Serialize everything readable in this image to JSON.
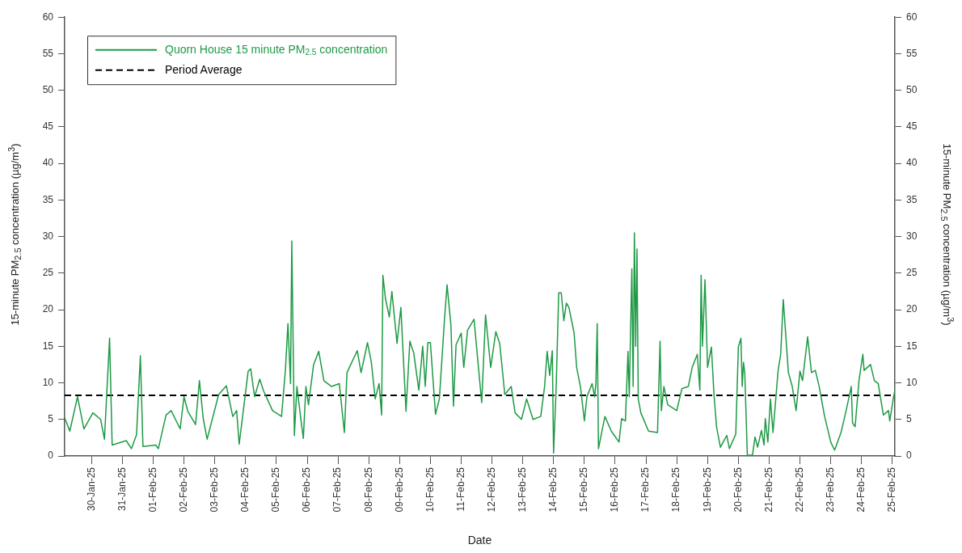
{
  "chart_data": {
    "type": "line",
    "xlabel": "Date",
    "ylabel": "15-minute PM$_{2.5}$ concentration (µg/m$^{3}$)",
    "y2label": "15-minute PM$_{2.5}$ concentration (µg/m$^{3}$)",
    "xlim": [
      "--01-29T03:00",
      "--02-25T02:00"
    ],
    "xticks": [
      {
        "value": "--01-30",
        "label": "30-Jan-25"
      },
      {
        "value": "--01-31",
        "label": "31-Jan-25"
      },
      {
        "value": "--02-01",
        "label": "01-Feb-25"
      },
      {
        "value": "--02-02",
        "label": "02-Feb-25"
      },
      {
        "value": "--02-03",
        "label": "03-Feb-25"
      },
      {
        "value": "--02-04",
        "label": "04-Feb-25"
      },
      {
        "value": "--02-05",
        "label": "05-Feb-25"
      },
      {
        "value": "--02-06",
        "label": "06-Feb-25"
      },
      {
        "value": "--02-07",
        "label": "07-Feb-25"
      },
      {
        "value": "--02-08",
        "label": "08-Feb-25"
      },
      {
        "value": "--02-09",
        "label": "09-Feb-25"
      },
      {
        "value": "--02-10",
        "label": "10-Feb-25"
      },
      {
        "value": "--02-11",
        "label": "11-Feb-25"
      },
      {
        "value": "--02-12",
        "label": "12-Feb-25"
      },
      {
        "value": "--02-13",
        "label": "13-Feb-25"
      },
      {
        "value": "--02-14",
        "label": "14-Feb-25"
      },
      {
        "value": "--02-15",
        "label": "15-Feb-25"
      },
      {
        "value": "--02-16",
        "label": "16-Feb-25"
      },
      {
        "value": "--02-17",
        "label": "17-Feb-25"
      },
      {
        "value": "--02-18",
        "label": "18-Feb-25"
      },
      {
        "value": "--02-19",
        "label": "19-Feb-25"
      },
      {
        "value": "--02-20",
        "label": "20-Feb-25"
      },
      {
        "value": "--02-21",
        "label": "21-Feb-25"
      },
      {
        "value": "--02-22",
        "label": "22-Feb-25"
      },
      {
        "value": "--02-23",
        "label": "23-Feb-25"
      },
      {
        "value": "--02-24",
        "label": "24-Feb-25"
      },
      {
        "value": "--02-25",
        "label": "25-Feb-25"
      }
    ],
    "ylim": [
      0,
      60
    ],
    "yticks": [
      0,
      5,
      10,
      15,
      20,
      25,
      30,
      35,
      40,
      45,
      50,
      55,
      60
    ],
    "y2lim": [
      0,
      60
    ],
    "y2ticks": [
      0,
      5,
      10,
      15,
      20,
      25,
      30,
      35,
      40,
      45,
      50,
      55,
      60
    ],
    "grid": false,
    "legend": "top left",
    "marker": "none",
    "line_style": "solid",
    "x": [
      "--01-29T03:00",
      "--01-29T07:00",
      "--01-29T13:00",
      "--01-29T18:00",
      "--01-30T01:00",
      "--01-30T07:00",
      "--01-30T10:00",
      "--01-30T14:00",
      "--01-30T16:00",
      "--01-31T03:00",
      "--01-31T07:00",
      "--01-31T11:00",
      "--01-31T14:00",
      "--01-31T16:00",
      "--02-01T02:00",
      "--02-01T04:00",
      "--02-01T10:00",
      "--02-01T14:00",
      "--02-01T21:00",
      "--02-02T00:00",
      "--02-02T03:00",
      "--02-02T09:00",
      "--02-02T12:00",
      "--02-02T15:00",
      "--02-02T18:00",
      "--02-03T03:00",
      "--02-03T09:00",
      "--02-03T14:00",
      "--02-03T17:00",
      "--02-03T19:00",
      "--02-04T02:00",
      "--02-04T04:00",
      "--02-04T07:00",
      "--02-04T11:00",
      "--02-04T14:00",
      "--02-04T21:00",
      "--02-05T04:00",
      "--02-05T07:00",
      "--02-05T09:00",
      "--02-05T11:00",
      "--02-05T12:00",
      "--02-05T14:00",
      "--02-05T16:00",
      "--02-05T19:00",
      "--02-05T21:00",
      "--02-05T23:00",
      "--02-06T01:00",
      "--02-06T05:00",
      "--02-06T09:00",
      "--02-06T13:00",
      "--02-06T19:00",
      "--02-07T01:00",
      "--02-07T05:00",
      "--02-07T07:00",
      "--02-07T15:00",
      "--02-07T18:00",
      "--02-07T23:00",
      "--02-08T02:00",
      "--02-08T05:00",
      "--02-08T08:00",
      "--02-08T10:00",
      "--02-08T11:00",
      "--02-08T13:00",
      "--02-08T16:00",
      "--02-08T18:00",
      "--02-08T22:00",
      "--02-09T01:00",
      "--02-09T05:00",
      "--02-09T08:00",
      "--02-09T11:00",
      "--02-09T15:00",
      "--02-09T18:00",
      "--02-09T20:00",
      "--02-09T22:00",
      "--02-10T00:00",
      "--02-10T04:00",
      "--02-10T07:00",
      "--02-10T11:00",
      "--02-10T13:00",
      "--02-10T16:00",
      "--02-10T18:00",
      "--02-10T20:00",
      "--02-11T00:00",
      "--02-11T02:00",
      "--02-11T05:00",
      "--02-11T10:00",
      "--02-11T16:00",
      "--02-11T19:00",
      "--02-11T23:00",
      "--02-12T03:00",
      "--02-12T06:00",
      "--02-12T10:00",
      "--02-12T15:00",
      "--02-12T18:00",
      "--02-12T23:00",
      "--02-13T03:00",
      "--02-13T08:00",
      "--02-13T14:00",
      "--02-13T17:00",
      "--02-13T19:00",
      "--02-13T21:00",
      "--02-13T23:00",
      "--02-14T00:00",
      "--02-14T02:00",
      "--02-14T04:00",
      "--02-14T06:00",
      "--02-14T08:00",
      "--02-14T10:00",
      "--02-14T12:00",
      "--02-14T16:00",
      "--02-14T18:00",
      "--02-14T21:00",
      "--02-15T00:00",
      "--02-15T02:00",
      "--02-15T06:00",
      "--02-15T08:00",
      "--02-15T09:00",
      "--02-15T10:00",
      "--02-15T11:00",
      "--02-15T16:00",
      "--02-15T21:00",
      "--02-16T03:00",
      "--02-16T05:00",
      "--02-16T08:00",
      "--02-16T10:00",
      "--02-16T11:00",
      "--02-16T13:00",
      "--02-16T14:00",
      "--02-16T15:00",
      "--02-16T16:00",
      "--02-16T17:00",
      "--02-16T18:00",
      "--02-16T20:00",
      "--02-17T02:00",
      "--02-17T09:00",
      "--02-17T11:00",
      "--02-17T12:00",
      "--02-17T14:00",
      "--02-17T17:00",
      "--02-18T00:00",
      "--02-18T04:00",
      "--02-18T09:00",
      "--02-18T12:00",
      "--02-18T16:00",
      "--02-18T18:00",
      "--02-18T19:00",
      "--02-18T20:00",
      "--02-18T22:00",
      "--02-19T00:00",
      "--02-19T03:00",
      "--02-19T05:00",
      "--02-19T07:00",
      "--02-19T10:00",
      "--02-19T15:00",
      "--02-19T17:00",
      "--02-19T22:00",
      "--02-20T00:00",
      "--02-20T02:00",
      "--02-20T03:00",
      "--02-20T04:00",
      "--02-20T05:00",
      "--02-20T07:00",
      "--02-20T11:00",
      "--02-20T13:00",
      "--02-20T15:00",
      "--02-20T18:00",
      "--02-20T20:00",
      "--02-20T21:00",
      "--02-20T23:00",
      "--02-21T01:00",
      "--02-21T03:00",
      "--02-21T07:00",
      "--02-21T09:00",
      "--02-21T11:00",
      "--02-21T15:00",
      "--02-21T18:00",
      "--02-21T21:00",
      "--02-22T00:00",
      "--02-22T02:00",
      "--02-22T06:00",
      "--02-22T09:00",
      "--02-22T12:00",
      "--02-22T15:00",
      "--02-22T19:00",
      "--02-23T00:00",
      "--02-23T03:00",
      "--02-23T08:00",
      "--02-23T12:00",
      "--02-23T16:00",
      "--02-23T17:00",
      "--02-23T19:00",
      "--02-23T22:00",
      "--02-24T01:00",
      "--02-24T02:00",
      "--02-24T07:00",
      "--02-24T10:00",
      "--02-24T13:00",
      "--02-24T17:00",
      "--02-24T21:00",
      "--02-24T22:00",
      "--02-25T01:00",
      "--02-25T02:00"
    ],
    "series": [
      {
        "name": "Quorn House 15 minute PM$_{2.5}$ concentration",
        "color": "#1e9a45",
        "values": [
          5.2,
          3.4,
          8.1,
          3.7,
          5.9,
          5.0,
          2.3,
          16.1,
          1.5,
          2.1,
          1.0,
          2.9,
          13.7,
          1.3,
          1.5,
          1.0,
          5.6,
          6.2,
          3.7,
          8.1,
          6.1,
          4.3,
          10.3,
          5.1,
          2.3,
          8.4,
          9.6,
          5.4,
          6.2,
          1.6,
          11.6,
          11.9,
          8.1,
          10.5,
          8.9,
          6.2,
          5.4,
          11.7,
          18.1,
          9.9,
          29.4,
          2.8,
          9.5,
          5.1,
          2.4,
          9.5,
          7.0,
          12.5,
          14.3,
          10.3,
          9.5,
          9.9,
          3.2,
          11.4,
          14.4,
          11.4,
          15.5,
          12.8,
          7.8,
          9.9,
          5.6,
          24.7,
          21.5,
          19.0,
          22.5,
          15.4,
          20.3,
          6.1,
          15.7,
          14.1,
          9.0,
          15.0,
          9.5,
          15.5,
          15.5,
          5.7,
          7.8,
          18.7,
          23.4,
          17.9,
          6.8,
          15.2,
          16.8,
          12.1,
          17.2,
          18.7,
          7.3,
          19.3,
          12.1,
          17.0,
          15.4,
          8.4,
          9.5,
          5.9,
          5.0,
          7.8,
          5.0,
          5.4,
          9.5,
          14.3,
          11.0,
          14.4,
          0.4,
          9.2,
          22.3,
          22.3,
          18.5,
          20.9,
          20.3,
          16.8,
          12.1,
          9.4,
          4.8,
          8.1,
          9.9,
          8.1,
          9.9,
          18.1,
          1.0,
          5.4,
          3.4,
          1.9,
          5.1,
          4.8,
          14.3,
          8.1,
          25.6,
          9.5,
          30.5,
          15.0,
          28.3,
          7.8,
          5.9,
          3.4,
          3.2,
          15.7,
          6.2,
          9.5,
          7.0,
          6.2,
          9.2,
          9.5,
          12.1,
          13.9,
          9.0,
          24.7,
          15.0,
          24.1,
          12.1,
          14.9,
          8.4,
          4.0,
          1.2,
          2.8,
          1.0,
          3.0,
          14.9,
          16.1,
          9.5,
          12.8,
          11.4,
          0.1,
          0.1,
          2.6,
          1.2,
          3.5,
          1.5,
          5.1,
          1.9,
          7.8,
          3.2,
          11.7,
          13.9,
          21.4,
          11.4,
          9.5,
          6.2,
          11.6,
          10.3,
          16.3,
          11.4,
          11.7,
          9.5,
          5.6,
          1.9,
          0.8,
          3.2,
          6.2,
          9.5,
          4.5,
          4.0,
          10.3,
          13.9,
          11.7,
          12.5,
          10.3,
          9.9,
          5.6,
          6.2,
          4.8,
          8.1,
          9.0
        ]
      }
    ],
    "ref_lines": [
      {
        "axis": "y",
        "value": 8.3,
        "label": "Period Average",
        "color": "#000000",
        "line_style": "dashed"
      }
    ]
  }
}
